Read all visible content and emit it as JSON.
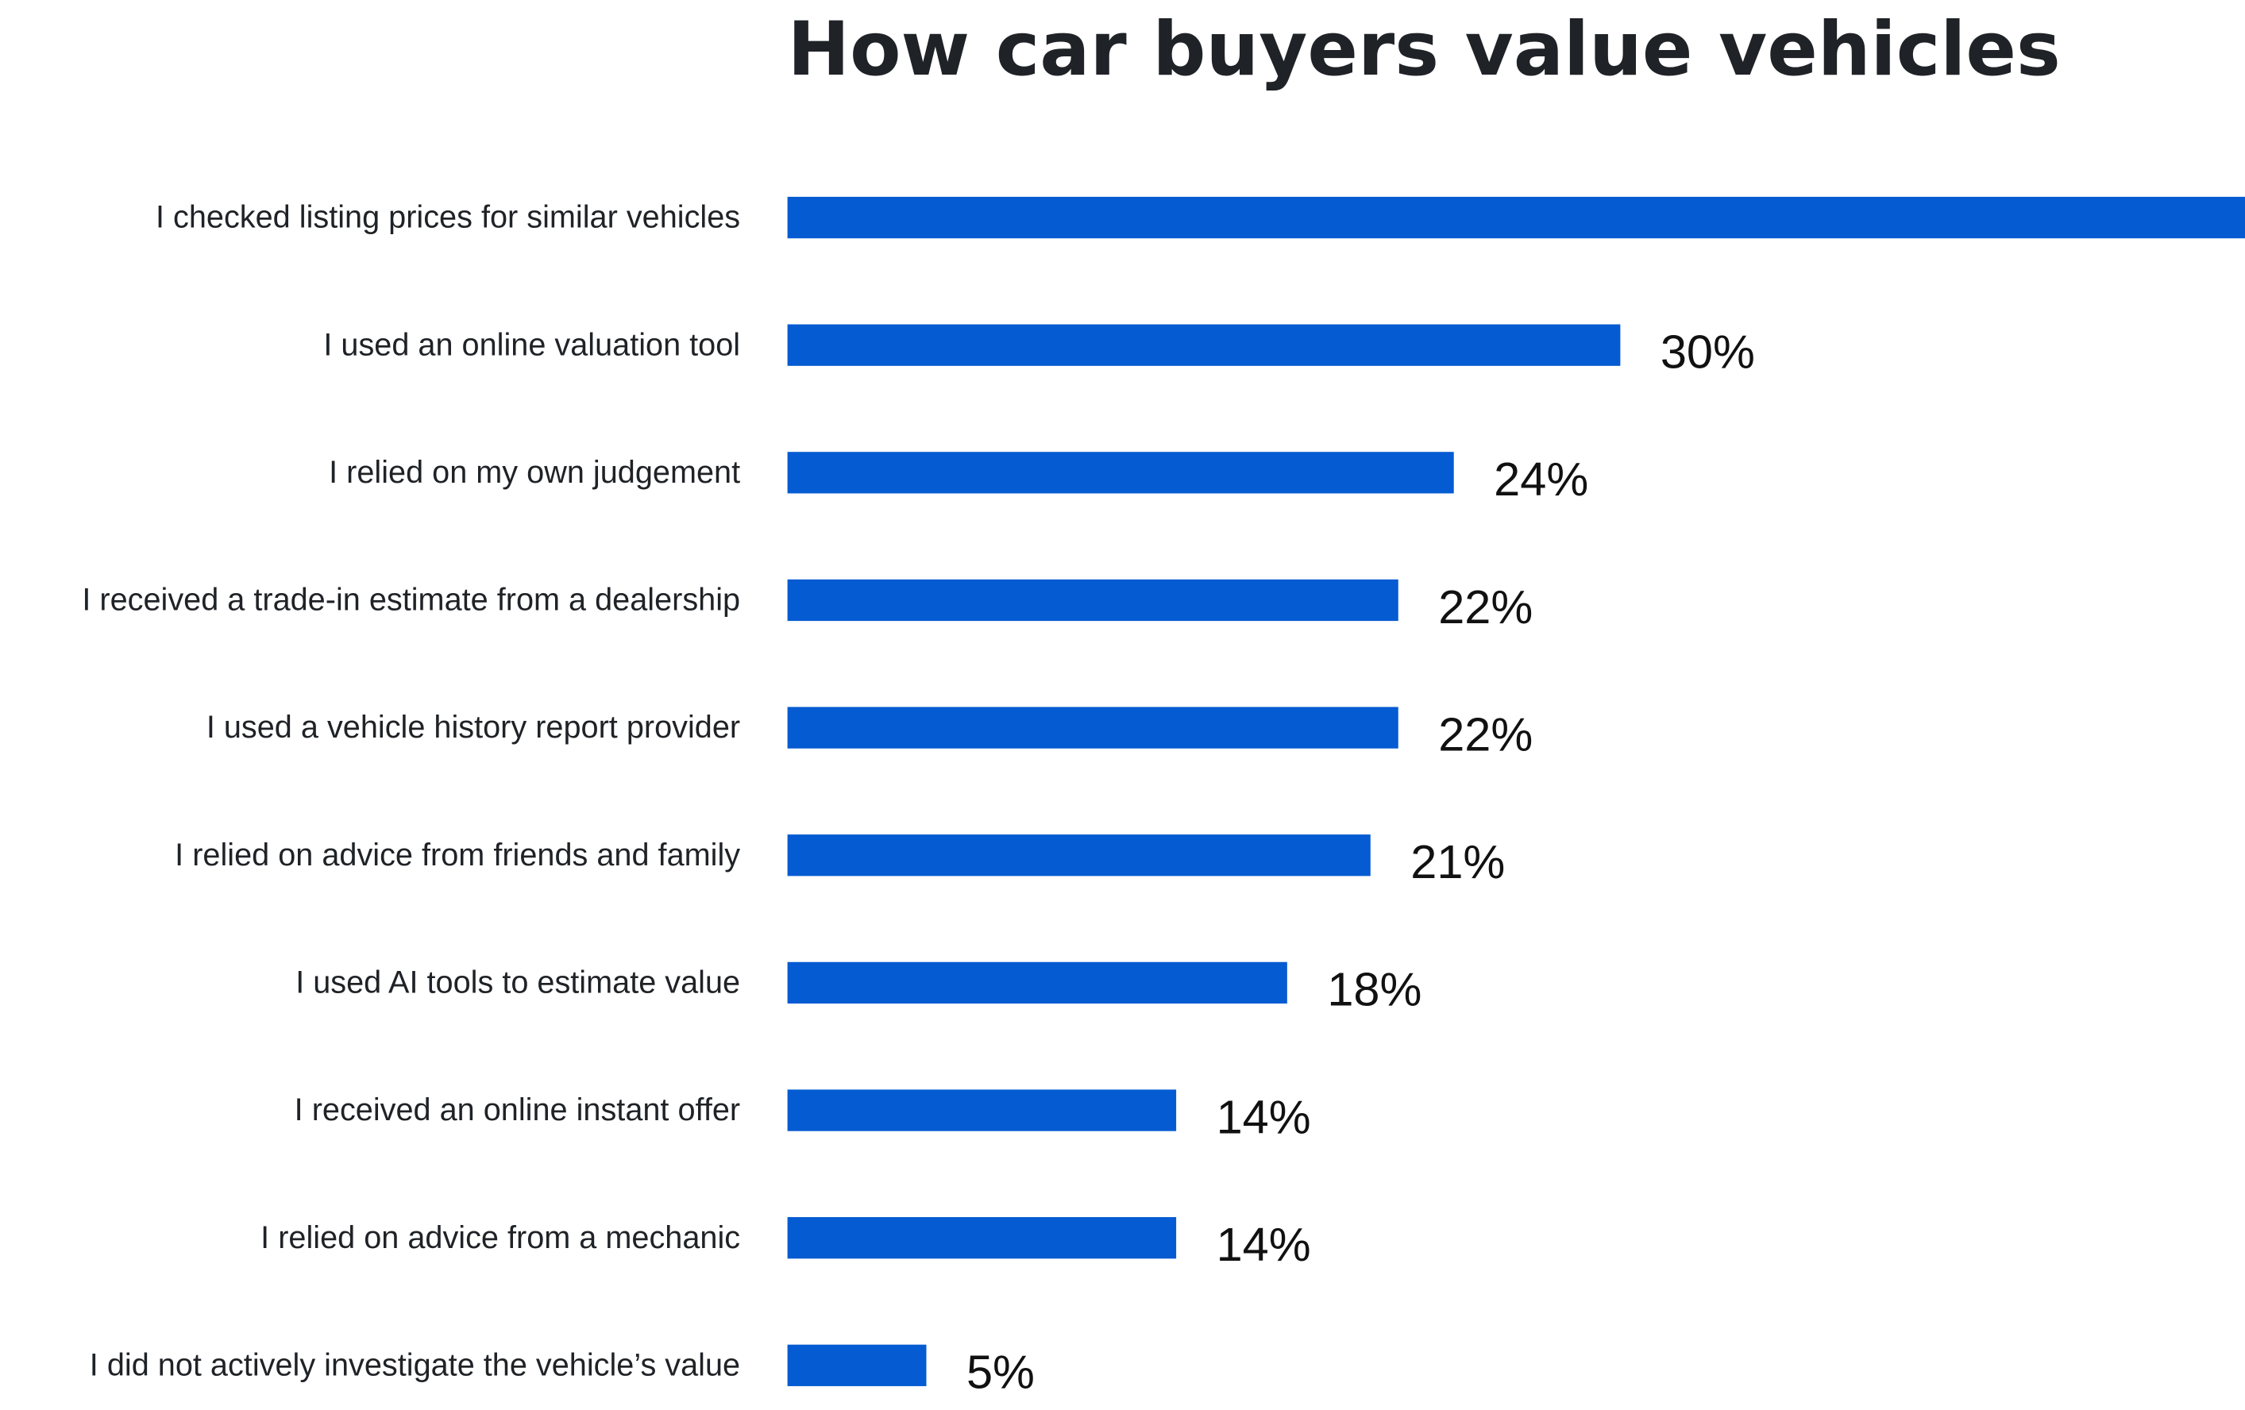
{
  "chart_data": {
    "type": "bar",
    "orientation": "horizontal",
    "title": "How car buyers value vehicles",
    "xlabel": "",
    "ylabel": "",
    "xlim": [
      0,
      52.5
    ],
    "grid": false,
    "legend": "none",
    "bar_color": "#055bd1",
    "categories": [
      "I checked listing prices for similar vehicles",
      "I used an online valuation tool",
      "I relied on my own judgement",
      "I received a trade-in estimate from a dealership",
      "I used a vehicle history report provider",
      "I relied on advice from friends and family",
      "I used AI tools to estimate value",
      "I received an online instant offer",
      "I relied on advice from a mechanic",
      "I did not actively investigate the vehicle’s value"
    ],
    "values": [
      52.5,
      30,
      24,
      22,
      22,
      21,
      18,
      14,
      14,
      5
    ],
    "value_labels": [
      "",
      "30%",
      "24%",
      "22%",
      "22%",
      "21%",
      "18%",
      "14%",
      "14%",
      "5%"
    ]
  }
}
